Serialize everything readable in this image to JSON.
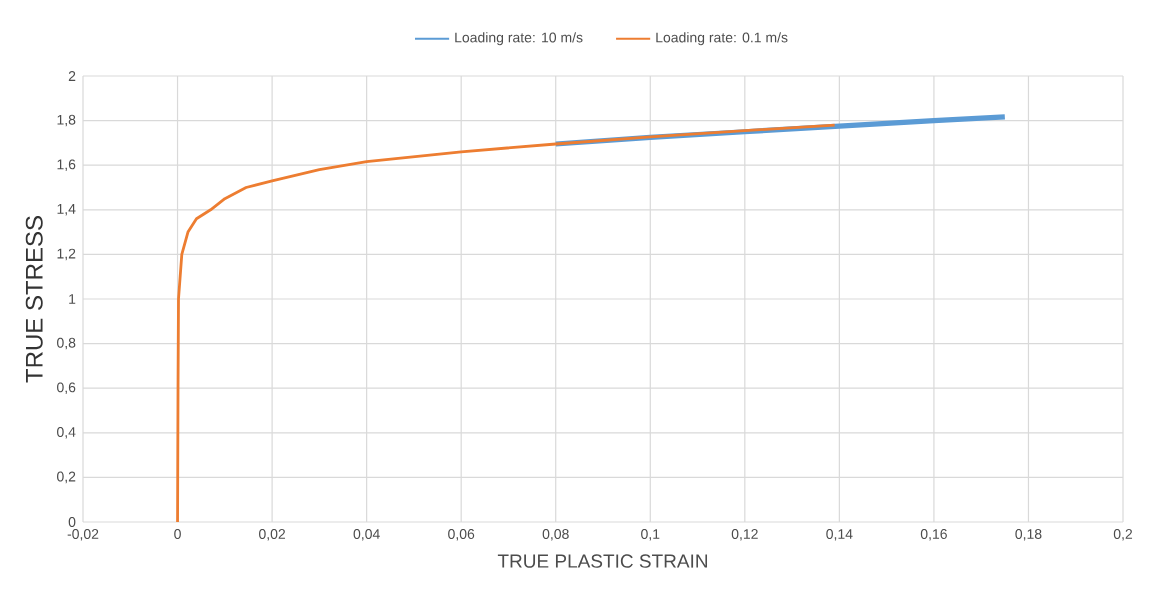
{
  "chart_data": {
    "type": "line",
    "xlabel": "TRUE PLASTIC STRAIN",
    "ylabel": "TRUE STRESS",
    "xlim": [
      -0.02,
      0.2
    ],
    "ylim": [
      0,
      2
    ],
    "xticks": [
      {
        "value": -0.02,
        "label": "-0,02"
      },
      0,
      {
        "value": 0.02,
        "label": "0,02"
      },
      {
        "value": 0.04,
        "label": "0,04"
      },
      {
        "value": 0.06,
        "label": "0,06"
      },
      {
        "value": 0.08,
        "label": "0,08"
      },
      {
        "value": 0.1,
        "label": "0,1"
      },
      {
        "value": 0.12,
        "label": "0,12"
      },
      {
        "value": 0.14,
        "label": "0,14"
      },
      {
        "value": 0.16,
        "label": "0,16"
      },
      {
        "value": 0.18,
        "label": "0,18"
      },
      {
        "value": 0.2,
        "label": "0,2"
      }
    ],
    "yticks": [
      0,
      {
        "value": 0.2,
        "label": "0,2"
      },
      {
        "value": 0.4,
        "label": "0,4"
      },
      {
        "value": 0.6,
        "label": "0,6"
      },
      {
        "value": 0.8,
        "label": "0,8"
      },
      1,
      {
        "value": 1.2,
        "label": "1,2"
      },
      {
        "value": 1.4,
        "label": "1,4"
      },
      {
        "value": 1.6,
        "label": "1,6"
      },
      {
        "value": 1.8,
        "label": "1,8"
      },
      2
    ],
    "grid": true,
    "legend": "top",
    "marker": "none",
    "series": [
      {
        "name": "Loading rate: 10 m/s",
        "color": "#5b9bd5",
        "x": [
          0.08,
          0.1,
          0.12,
          0.14,
          0.16,
          0.175
        ],
        "values": [
          1.695,
          1.725,
          1.75,
          1.775,
          1.8,
          1.817
        ]
      },
      {
        "name": "Loading rate: 0.1 m/s",
        "color": "#ed7d31",
        "x": [
          0,
          0.0001,
          0.0002,
          0.0009,
          0.0022,
          0.004,
          0.0055,
          0.007,
          0.01,
          0.0145,
          0.02,
          0.03,
          0.04,
          0.06,
          0.08,
          0.1,
          0.12,
          0.139
        ],
        "values": [
          0,
          0.6,
          1.0,
          1.2,
          1.3,
          1.36,
          1.38,
          1.4,
          1.45,
          1.5,
          1.53,
          1.58,
          1.616,
          1.66,
          1.695,
          1.727,
          1.755,
          1.78
        ]
      }
    ]
  }
}
